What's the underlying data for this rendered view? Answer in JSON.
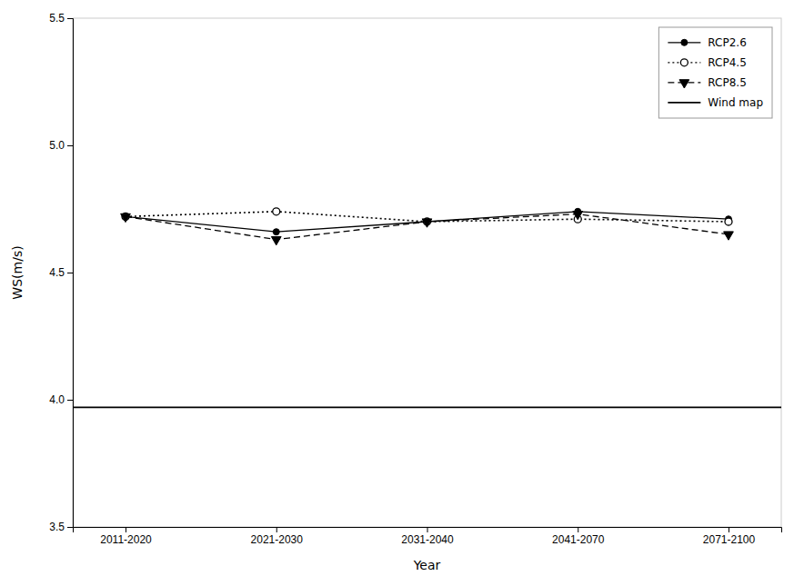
{
  "chart_data": {
    "type": "line",
    "categories": [
      "2011-2020",
      "2021-2030",
      "2031-2040",
      "2041-2070",
      "2071-2100"
    ],
    "series": [
      {
        "name": "RCP2.6",
        "color": "#000000",
        "line_style": "solid",
        "marker": "circle",
        "values": [
          4.72,
          4.66,
          4.7,
          4.74,
          4.71
        ]
      },
      {
        "name": "RCP4.5",
        "color": "#000000",
        "line_style": "dotted",
        "marker": "circle-open",
        "values": [
          4.72,
          4.74,
          4.7,
          4.71,
          4.7
        ]
      },
      {
        "name": "RCP8.5",
        "color": "#000000",
        "line_style": "dashed",
        "marker": "triangle-down",
        "values": [
          4.72,
          4.63,
          4.7,
          4.73,
          4.65
        ]
      },
      {
        "name": "Wind map",
        "type": "hline",
        "color": "#000000",
        "line_style": "solid",
        "marker": "none",
        "value": 3.97
      }
    ],
    "xlabel": "Year",
    "ylabel": "WS(m/s)",
    "ylim": [
      3.5,
      5.5
    ],
    "yticks": [
      3.5,
      {
        "value": 4.0,
        "label": "4.0"
      },
      4.5,
      {
        "value": 5.0,
        "label": "5.0"
      },
      5.5
    ],
    "grid": false,
    "legend": "upper right"
  }
}
